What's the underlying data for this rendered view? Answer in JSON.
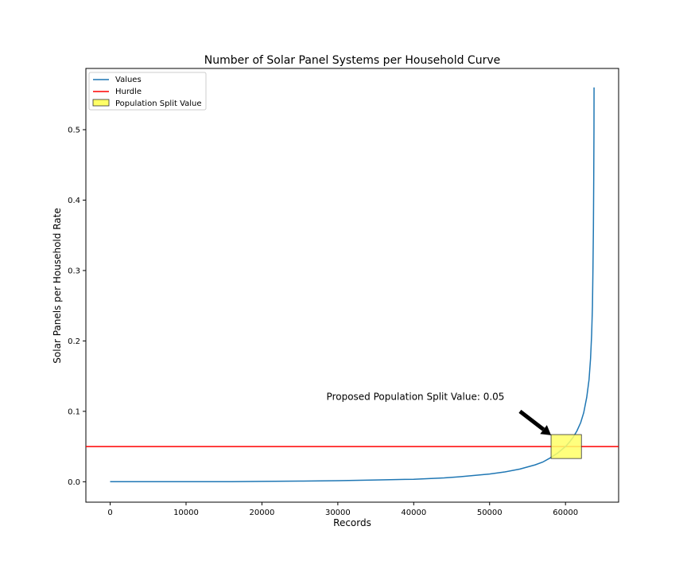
{
  "chart_data": {
    "type": "line",
    "title": "Number of Solar Panel Systems per Household Curve",
    "xlabel": "Records",
    "ylabel": "Solar Panels per Household Rate",
    "xlim": [
      -3200,
      67000
    ],
    "ylim": [
      -0.029,
      0.587
    ],
    "xticks": [
      0,
      10000,
      20000,
      30000,
      40000,
      50000,
      60000
    ],
    "yticks": [
      0.0,
      0.1,
      0.2,
      0.3,
      0.4,
      0.5
    ],
    "xtick_labels": [
      "0",
      "10000",
      "20000",
      "30000",
      "40000",
      "50000",
      "60000"
    ],
    "ytick_labels": [
      "0.0",
      "0.1",
      "0.2",
      "0.3",
      "0.4",
      "0.5"
    ],
    "grid": false,
    "legend_position": "top-left",
    "series": [
      {
        "name": "Values",
        "color": "#1f77b4",
        "x": [
          0,
          5000,
          10000,
          16000,
          20000,
          25000,
          30000,
          35000,
          40000,
          42000,
          44000,
          46000,
          48000,
          50000,
          52000,
          54000,
          56000,
          57000,
          58000,
          59000,
          60000,
          60500,
          61000,
          61500,
          62000,
          62400,
          62800,
          63100,
          63300,
          63450,
          63550,
          63620,
          63680,
          63720,
          63750,
          63760
        ],
        "y": [
          0.0,
          0.0,
          0.0,
          0.0,
          0.0005,
          0.001,
          0.0015,
          0.0025,
          0.0035,
          0.0045,
          0.0055,
          0.007,
          0.009,
          0.011,
          0.014,
          0.018,
          0.024,
          0.028,
          0.034,
          0.041,
          0.05,
          0.056,
          0.063,
          0.072,
          0.084,
          0.098,
          0.12,
          0.145,
          0.175,
          0.21,
          0.25,
          0.3,
          0.36,
          0.43,
          0.5,
          0.56
        ]
      }
    ],
    "hurdle": {
      "name": "Hurdle",
      "y": 0.05,
      "color": "#ff0000"
    },
    "split_box": {
      "name": "Population Split Value",
      "x_range": [
        58100,
        62100
      ],
      "y_range": [
        0.033,
        0.067
      ],
      "color": "#ffff66"
    },
    "annotation": {
      "text": "Proposed Population Split Value: 0.05",
      "text_xy": [
        28500,
        0.116
      ],
      "arrow_from": [
        54000,
        0.1
      ],
      "arrow_to": [
        58100,
        0.066
      ]
    }
  }
}
